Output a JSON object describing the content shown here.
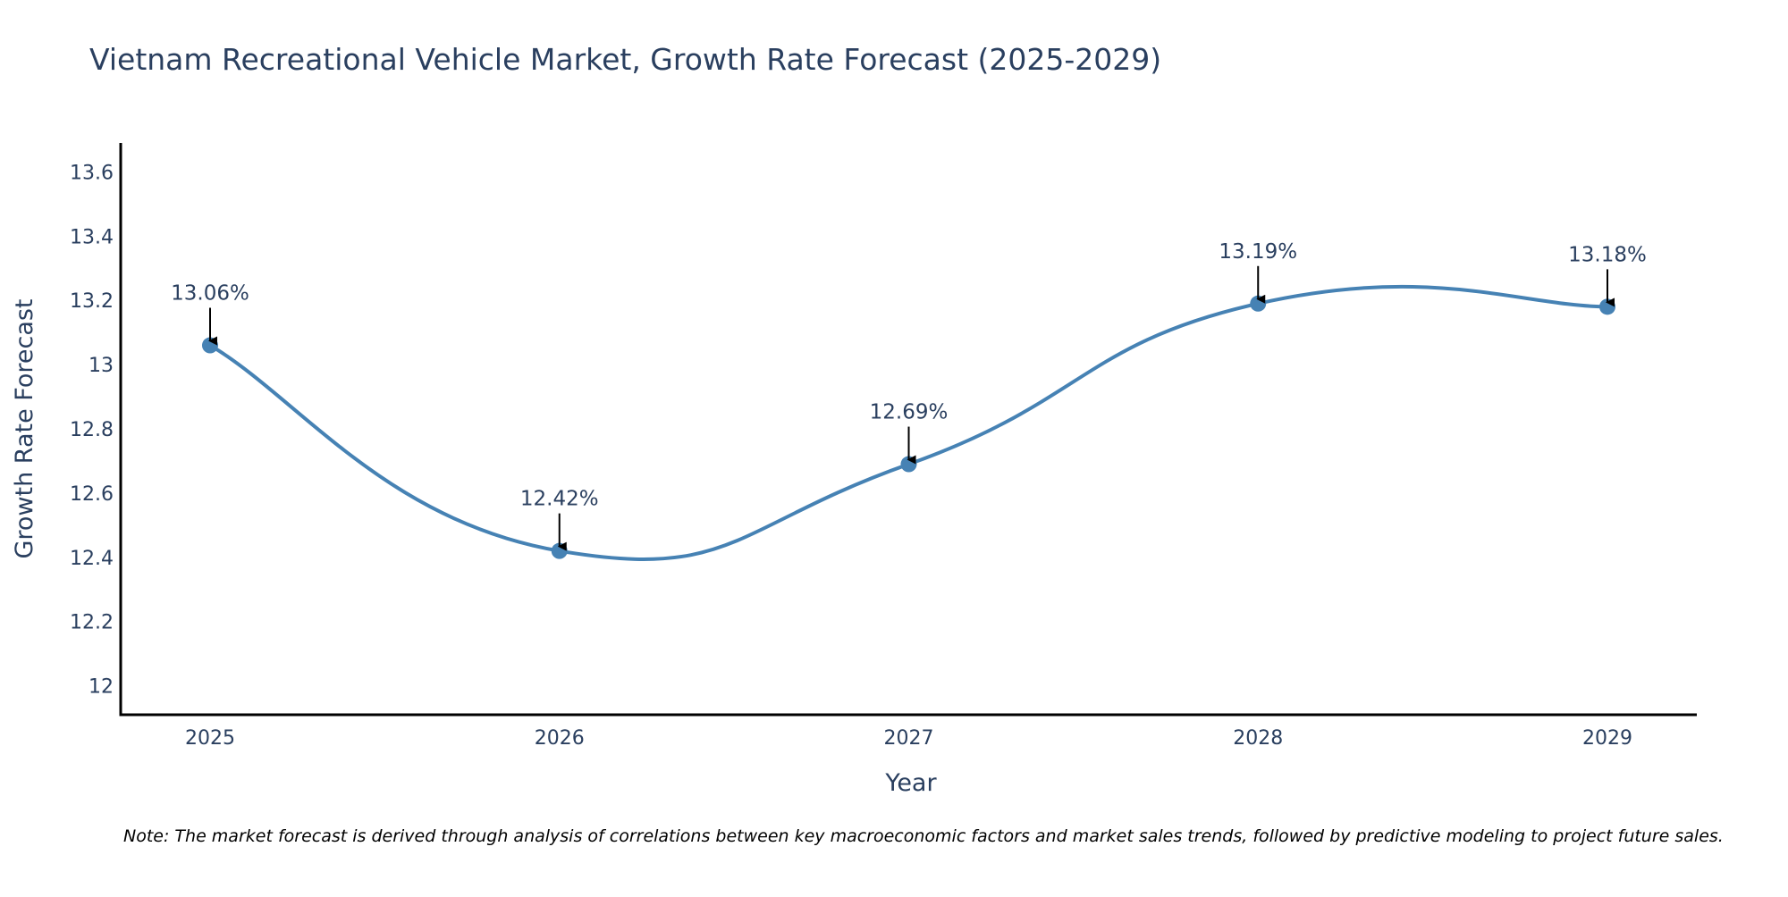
{
  "chart_data": {
    "type": "line",
    "title": "Vietnam Recreational Vehicle Market, Growth Rate Forecast (2025-2029)",
    "xlabel": "Year",
    "ylabel": "Growth Rate Forecast",
    "categories": [
      "2025",
      "2026",
      "2027",
      "2028",
      "2029"
    ],
    "series": [
      {
        "name": "Growth Rate Forecast",
        "values": [
          13.06,
          12.42,
          12.69,
          13.19,
          13.18
        ]
      }
    ],
    "annotations": [
      "13.06%",
      "12.42%",
      "12.69%",
      "13.19%",
      "13.18%"
    ],
    "y_ticks": [
      "12",
      "12.2",
      "12.4",
      "12.6",
      "12.8",
      "13",
      "13.2",
      "13.4",
      "13.6"
    ],
    "y_tick_values": [
      12,
      12.2,
      12.4,
      12.6,
      12.8,
      13,
      13.2,
      13.4,
      13.6
    ],
    "ylim": [
      11.91,
      13.69
    ],
    "grid": false,
    "line_shape": "spline",
    "colors": {
      "line": "#4682b4",
      "marker": "#4682b4",
      "axis": "#000000",
      "text": "#2a3f5f",
      "arrow": "#000000"
    },
    "note": "Note: The market forecast is derived through analysis of correlations between key macroeconomic factors and market sales trends, followed by predictive modeling to project future sales."
  }
}
